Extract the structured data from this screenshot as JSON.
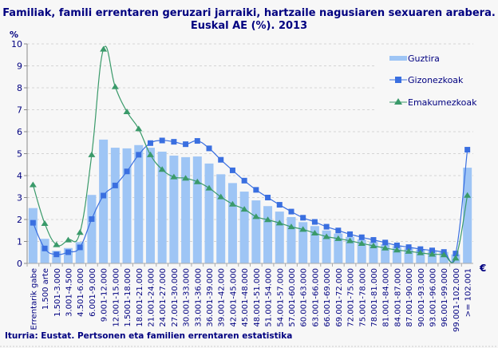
{
  "chart_data": {
    "type": "bar+line",
    "title": "Familiak, famili errentaren geruzari jarraiki, hartzaile nagusiaren sexuaren arabera.",
    "subtitle": "Euskal AE (%). 2013",
    "ylabel": "%",
    "xlabel": "€",
    "ylim": [
      0,
      10
    ],
    "yticks": [
      "0",
      "1",
      "2",
      "3",
      "4",
      "5",
      "6",
      "7",
      "8",
      "9",
      "10"
    ],
    "grid": true,
    "legend": "top-right",
    "categories": [
      "Errentarik gabe",
      "1.500 arte",
      "1.501-3.000",
      "3.001-4.500",
      "4.501-6.000",
      "6.001-9.000",
      "9.001-12.000",
      "12.001-15.000",
      "1.5001-18.000",
      "18.001-21.000",
      "21.001-24.000",
      "24.001-27.000",
      "27.001-30.000",
      "30.001-33.000",
      "33.001-36.000",
      "36.001-39.000",
      "39.001-42.000",
      "42.001-45.000",
      "45.001-48.000",
      "48.001-51.000",
      "51.001-54.000",
      "54.001-57.000",
      "57.001-60.000",
      "60.001-63.000",
      "63.001-66.000",
      "66.001-69.000",
      "69.001-72.000",
      "72.001-75.000",
      "75.001-78.000",
      "78.001-81.000",
      "81.001-84.000",
      "84.001-87.000",
      "87.001-90.000",
      "90.001-93.000",
      "93.001-96.000",
      "96.001-99.000",
      "99.001-102.000",
      ">= 102.001"
    ],
    "series": [
      {
        "name": "Guztira",
        "kind": "bar",
        "color": "#9ec5f5",
        "values": [
          2.52,
          1.12,
          0.57,
          0.7,
          0.97,
          3.12,
          5.64,
          5.27,
          5.24,
          5.39,
          5.27,
          5.09,
          4.91,
          4.84,
          4.87,
          4.55,
          4.06,
          3.66,
          3.27,
          2.87,
          2.61,
          2.36,
          2.11,
          1.88,
          1.7,
          1.5,
          1.36,
          1.21,
          1.09,
          0.97,
          0.87,
          0.79,
          0.7,
          0.63,
          0.57,
          0.52,
          0.41,
          4.36
        ]
      },
      {
        "name": "Gizonezkoak",
        "kind": "line",
        "marker": "square",
        "color": "#3a6fe0",
        "values": [
          1.85,
          0.68,
          0.41,
          0.51,
          0.73,
          2.02,
          3.09,
          3.55,
          4.19,
          4.95,
          5.48,
          5.6,
          5.54,
          5.43,
          5.58,
          5.24,
          4.72,
          4.24,
          3.77,
          3.35,
          3.0,
          2.67,
          2.36,
          2.08,
          1.89,
          1.67,
          1.5,
          1.33,
          1.19,
          1.07,
          0.95,
          0.82,
          0.74,
          0.65,
          0.59,
          0.52,
          0.45,
          5.18
        ]
      },
      {
        "name": "Emakumezkoak",
        "kind": "line",
        "marker": "triangle",
        "color": "#3a9a6a",
        "values": [
          3.58,
          1.82,
          0.85,
          1.07,
          1.41,
          4.95,
          9.76,
          8.05,
          6.91,
          6.13,
          4.95,
          4.28,
          3.94,
          3.88,
          3.72,
          3.43,
          3.03,
          2.7,
          2.47,
          2.13,
          1.99,
          1.84,
          1.67,
          1.55,
          1.38,
          1.22,
          1.13,
          1.03,
          0.91,
          0.8,
          0.7,
          0.61,
          0.55,
          0.48,
          0.42,
          0.39,
          0.24,
          3.1
        ]
      }
    ],
    "source": "Iturria: Eustat. Pertsonen eta familien errentaren estatistika"
  }
}
